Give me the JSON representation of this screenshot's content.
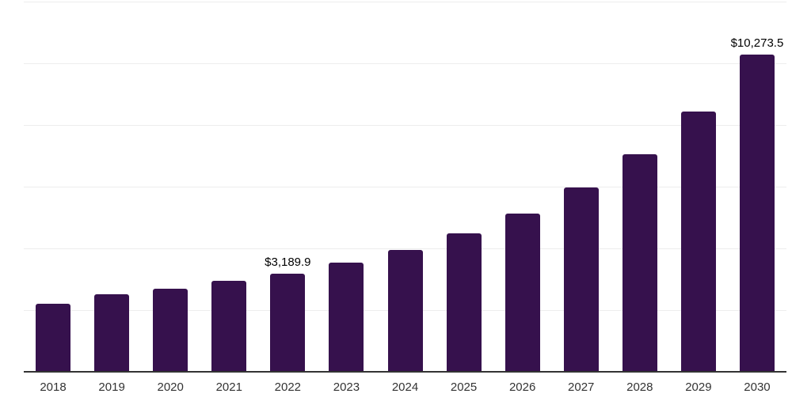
{
  "chart_data": {
    "type": "bar",
    "title": "",
    "xlabel": "",
    "ylabel": "",
    "categories": [
      "2018",
      "2019",
      "2020",
      "2021",
      "2022",
      "2023",
      "2024",
      "2025",
      "2026",
      "2027",
      "2028",
      "2029",
      "2030"
    ],
    "values": [
      2200,
      2520,
      2700,
      2950,
      3189.9,
      3540,
      3950,
      4480,
      5120,
      5970,
      7050,
      8430,
      10273.5
    ],
    "data_labels": [
      {
        "category": "2022",
        "text": "$3,189.9"
      },
      {
        "category": "2030",
        "text": "$10,273.5"
      }
    ],
    "ylim": [
      0,
      12000
    ],
    "gridline_interval": 2000,
    "grid": "horizontal-only",
    "legend": "none",
    "colors": {
      "bar": "#36114D",
      "gridline": "#ededed",
      "axis_line": "#333333",
      "tick_label": "#333333",
      "data_label": "#000000",
      "background": "#ffffff"
    }
  }
}
